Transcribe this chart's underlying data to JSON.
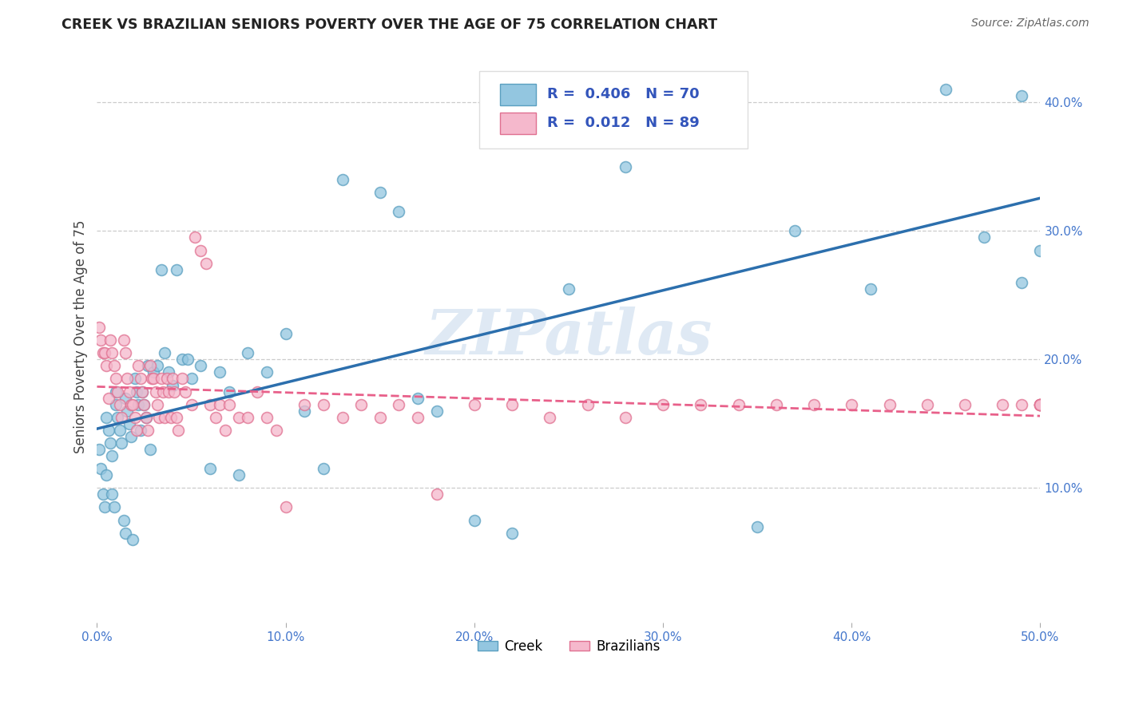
{
  "title": "CREEK VS BRAZILIAN SENIORS POVERTY OVER THE AGE OF 75 CORRELATION CHART",
  "source": "Source: ZipAtlas.com",
  "ylabel": "Seniors Poverty Over the Age of 75",
  "xlim": [
    0,
    0.5
  ],
  "ylim": [
    -0.005,
    0.44
  ],
  "xticks": [
    0.0,
    0.1,
    0.2,
    0.3,
    0.4,
    0.5
  ],
  "yticks": [
    0.1,
    0.2,
    0.3,
    0.4
  ],
  "creek_R": "0.406",
  "creek_N": "70",
  "brazilian_R": "0.012",
  "brazilian_N": "89",
  "creek_color": "#93c6e0",
  "creek_edge_color": "#5a9fc0",
  "brazilian_color": "#f5b8cc",
  "brazilian_edge_color": "#e07090",
  "creek_line_color": "#2c6fad",
  "brazilian_line_color": "#e8608a",
  "legend_text_color": "#3355bb",
  "watermark": "ZIPatlas",
  "title_color": "#222222",
  "source_color": "#666666",
  "axis_color": "#4477cc",
  "grid_color": "#cccccc",
  "creek_x": [
    0.001,
    0.002,
    0.003,
    0.004,
    0.005,
    0.005,
    0.006,
    0.007,
    0.008,
    0.008,
    0.009,
    0.01,
    0.01,
    0.011,
    0.012,
    0.013,
    0.014,
    0.015,
    0.015,
    0.016,
    0.017,
    0.018,
    0.019,
    0.02,
    0.021,
    0.022,
    0.023,
    0.024,
    0.025,
    0.026,
    0.027,
    0.028,
    0.03,
    0.032,
    0.034,
    0.036,
    0.038,
    0.04,
    0.042,
    0.045,
    0.048,
    0.05,
    0.055,
    0.06,
    0.065,
    0.07,
    0.075,
    0.08,
    0.09,
    0.1,
    0.11,
    0.12,
    0.13,
    0.15,
    0.16,
    0.17,
    0.18,
    0.2,
    0.22,
    0.25,
    0.28,
    0.32,
    0.35,
    0.37,
    0.41,
    0.45,
    0.47,
    0.49,
    0.49,
    0.5
  ],
  "creek_y": [
    0.13,
    0.115,
    0.095,
    0.085,
    0.11,
    0.155,
    0.145,
    0.135,
    0.125,
    0.095,
    0.085,
    0.175,
    0.165,
    0.155,
    0.145,
    0.135,
    0.075,
    0.065,
    0.17,
    0.16,
    0.15,
    0.14,
    0.06,
    0.185,
    0.175,
    0.165,
    0.145,
    0.175,
    0.165,
    0.155,
    0.195,
    0.13,
    0.19,
    0.195,
    0.27,
    0.205,
    0.19,
    0.18,
    0.27,
    0.2,
    0.2,
    0.185,
    0.195,
    0.115,
    0.19,
    0.175,
    0.11,
    0.205,
    0.19,
    0.22,
    0.16,
    0.115,
    0.34,
    0.33,
    0.315,
    0.17,
    0.16,
    0.075,
    0.065,
    0.255,
    0.35,
    0.37,
    0.07,
    0.3,
    0.255,
    0.41,
    0.295,
    0.26,
    0.405,
    0.285
  ],
  "brazilian_x": [
    0.001,
    0.002,
    0.003,
    0.004,
    0.005,
    0.006,
    0.007,
    0.008,
    0.009,
    0.01,
    0.011,
    0.012,
    0.013,
    0.014,
    0.015,
    0.016,
    0.017,
    0.018,
    0.019,
    0.02,
    0.021,
    0.022,
    0.023,
    0.024,
    0.025,
    0.026,
    0.027,
    0.028,
    0.029,
    0.03,
    0.031,
    0.032,
    0.033,
    0.034,
    0.035,
    0.036,
    0.037,
    0.038,
    0.039,
    0.04,
    0.041,
    0.042,
    0.043,
    0.045,
    0.047,
    0.05,
    0.052,
    0.055,
    0.058,
    0.06,
    0.063,
    0.065,
    0.068,
    0.07,
    0.075,
    0.08,
    0.085,
    0.09,
    0.095,
    0.1,
    0.11,
    0.12,
    0.13,
    0.14,
    0.15,
    0.16,
    0.17,
    0.18,
    0.2,
    0.22,
    0.24,
    0.26,
    0.28,
    0.3,
    0.32,
    0.34,
    0.36,
    0.38,
    0.4,
    0.42,
    0.44,
    0.46,
    0.48,
    0.49,
    0.5,
    0.5,
    0.5,
    0.5,
    0.5
  ],
  "brazilian_y": [
    0.225,
    0.215,
    0.205,
    0.205,
    0.195,
    0.17,
    0.215,
    0.205,
    0.195,
    0.185,
    0.175,
    0.165,
    0.155,
    0.215,
    0.205,
    0.185,
    0.175,
    0.165,
    0.165,
    0.155,
    0.145,
    0.195,
    0.185,
    0.175,
    0.165,
    0.155,
    0.145,
    0.195,
    0.185,
    0.185,
    0.175,
    0.165,
    0.155,
    0.185,
    0.175,
    0.155,
    0.185,
    0.175,
    0.155,
    0.185,
    0.175,
    0.155,
    0.145,
    0.185,
    0.175,
    0.165,
    0.295,
    0.285,
    0.275,
    0.165,
    0.155,
    0.165,
    0.145,
    0.165,
    0.155,
    0.155,
    0.175,
    0.155,
    0.145,
    0.085,
    0.165,
    0.165,
    0.155,
    0.165,
    0.155,
    0.165,
    0.155,
    0.095,
    0.165,
    0.165,
    0.155,
    0.165,
    0.155,
    0.165,
    0.165,
    0.165,
    0.165,
    0.165,
    0.165,
    0.165,
    0.165,
    0.165,
    0.165,
    0.165,
    0.165,
    0.165,
    0.165,
    0.165,
    0.165
  ]
}
